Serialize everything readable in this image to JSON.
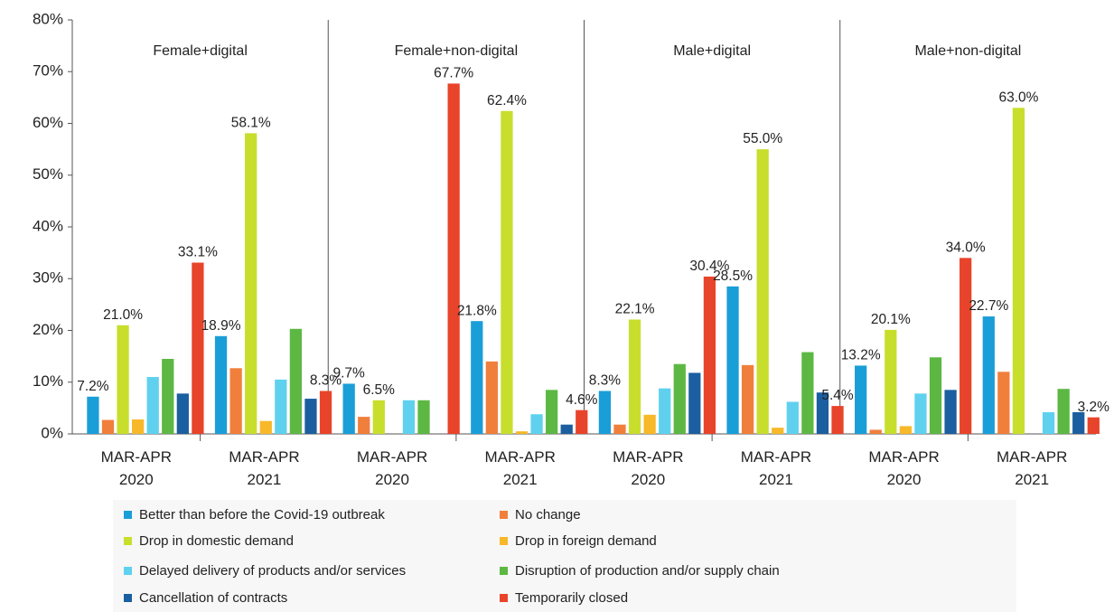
{
  "chart_data": {
    "type": "bar",
    "panels": [
      "Female+digital",
      "Female+non-digital",
      "Male+digital",
      "Male+non-digital"
    ],
    "categories": [
      "MAR-APR 2020",
      "MAR-APR 2021",
      "MAR-APR 2020",
      "MAR-APR 2021",
      "MAR-APR 2020",
      "MAR-APR 2021",
      "MAR-APR 2020",
      "MAR-APR 2021"
    ],
    "series": [
      {
        "name": "Better than before the Covid-19 outbreak",
        "color": "#1a9ed8",
        "values": [
          7.2,
          18.9,
          9.7,
          21.8,
          8.3,
          28.5,
          13.2,
          22.7
        ],
        "value_labels": [
          "7.2%",
          "18.9%",
          "9.7%",
          "21.8%",
          "8.3%",
          "28.5%",
          "13.2%",
          "22.7%"
        ]
      },
      {
        "name": "No change",
        "color": "#f07f3c",
        "values": [
          2.7,
          12.7,
          3.3,
          14.0,
          1.8,
          13.3,
          0.8,
          12.0
        ]
      },
      {
        "name": "Drop in domestic demand",
        "color": "#c8de2c",
        "values": [
          21.0,
          58.1,
          6.5,
          62.4,
          22.1,
          55.0,
          20.1,
          63.0
        ],
        "value_labels": [
          "21.0%",
          "58.1%",
          "6.5%",
          "62.4%",
          "22.1%",
          "55.0%",
          "20.1%",
          "63.0%"
        ]
      },
      {
        "name": "Drop in foreign demand",
        "color": "#f7b829",
        "values": [
          2.8,
          2.5,
          0,
          0.5,
          3.7,
          1.2,
          1.5,
          0
        ]
      },
      {
        "name": "Delayed delivery of products and/or services",
        "color": "#5fd1ef",
        "values": [
          11.0,
          10.5,
          6.5,
          3.8,
          8.8,
          6.2,
          7.8,
          4.2
        ]
      },
      {
        "name": "Disruption of production and/or supply chain",
        "color": "#5cb843",
        "values": [
          14.5,
          20.3,
          6.5,
          8.5,
          13.5,
          15.8,
          14.8,
          8.7
        ]
      },
      {
        "name": "Cancellation of contracts",
        "color": "#1b5fa0",
        "values": [
          7.8,
          6.8,
          0,
          1.8,
          11.8,
          8.0,
          8.5,
          4.2
        ]
      },
      {
        "name": "Temporarily closed",
        "color": "#e8442b",
        "values": [
          33.1,
          8.3,
          67.7,
          4.6,
          30.4,
          5.4,
          34.0,
          3.2
        ],
        "value_labels": [
          "33.1%",
          "8.3%",
          "67.7%",
          "4.6%",
          "30.4%",
          "5.4%",
          "34.0%",
          "3.2%"
        ]
      }
    ],
    "ylim": [
      0,
      80
    ],
    "yticks": [
      {
        "value": 0,
        "label": "0%"
      },
      {
        "value": 10,
        "label": "10%"
      },
      {
        "value": 20,
        "label": "20%"
      },
      {
        "value": 30,
        "label": "30%"
      },
      {
        "value": 40,
        "label": "40%"
      },
      {
        "value": 50,
        "label": "50%"
      },
      {
        "value": 60,
        "label": "60%"
      },
      {
        "value": 70,
        "label": "70%"
      },
      {
        "value": 80,
        "label": "80%"
      }
    ]
  }
}
